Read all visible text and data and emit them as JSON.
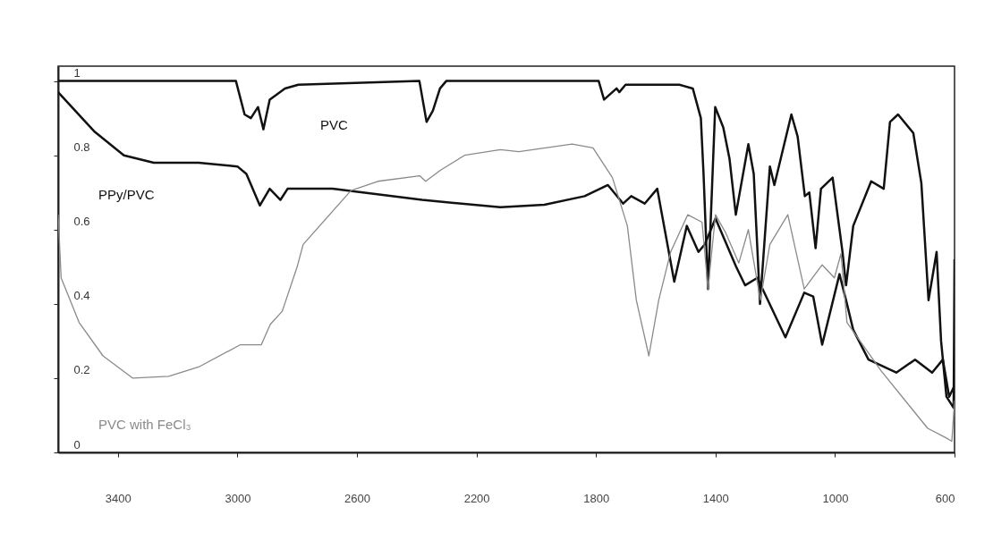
{
  "chart_data": {
    "type": "line",
    "xlim": [
      3600,
      600
    ],
    "ylim": [
      0,
      1.04
    ],
    "xticks": [
      3400,
      3000,
      2600,
      2200,
      1800,
      1400,
      1000,
      600
    ],
    "yticks": [
      0,
      0.2,
      0.4,
      0.6,
      0.8,
      1
    ],
    "grid": false,
    "series": [
      {
        "name": "PVC",
        "color": "#111111",
        "x": [
          3600,
          3005,
          2976,
          2955,
          2931,
          2913,
          2892,
          2841,
          2796,
          2391,
          2367,
          2346,
          2322,
          2301,
          1791,
          1773,
          1731,
          1722,
          1701,
          1521,
          1476,
          1449,
          1440,
          1425,
          1401,
          1374,
          1353,
          1332,
          1290,
          1272,
          1251,
          1218,
          1203,
          1179,
          1146,
          1125,
          1101,
          1086,
          1065,
          1047,
          1008,
          975,
          963,
          939,
          879,
          837,
          816,
          789,
          738,
          711,
          687,
          660,
          645,
          627,
          603,
          600
        ],
        "values": [
          1.0,
          1.0,
          0.91,
          0.9,
          0.93,
          0.87,
          0.95,
          0.98,
          0.99,
          1.0,
          0.89,
          0.92,
          0.98,
          1.0,
          1.0,
          0.95,
          0.98,
          0.97,
          0.99,
          0.99,
          0.98,
          0.9,
          0.75,
          0.44,
          0.93,
          0.875,
          0.79,
          0.64,
          0.83,
          0.75,
          0.4,
          0.77,
          0.72,
          0.8,
          0.91,
          0.85,
          0.69,
          0.7,
          0.55,
          0.71,
          0.74,
          0.54,
          0.45,
          0.61,
          0.73,
          0.71,
          0.89,
          0.91,
          0.86,
          0.725,
          0.41,
          0.54,
          0.3,
          0.15,
          0.12,
          0.52
        ]
      },
      {
        "name": "PPy/PVC",
        "color": "#111111",
        "x": [
          3600,
          3480,
          3380,
          3280,
          3130,
          3000,
          2970,
          2925,
          2892,
          2856,
          2832,
          2682,
          2382,
          2120,
          1973,
          1838,
          1760,
          1709,
          1682,
          1637,
          1595,
          1538,
          1496,
          1457,
          1436,
          1400,
          1331,
          1301,
          1260,
          1166,
          1103,
          1073,
          1043,
          985,
          960,
          939,
          888,
          795,
          732,
          675,
          639,
          618,
          600
        ],
        "values": [
          0.97,
          0.865,
          0.8,
          0.78,
          0.78,
          0.77,
          0.75,
          0.665,
          0.71,
          0.68,
          0.71,
          0.71,
          0.68,
          0.66,
          0.667,
          0.69,
          0.72,
          0.67,
          0.69,
          0.67,
          0.71,
          0.46,
          0.61,
          0.54,
          0.56,
          0.63,
          0.5,
          0.45,
          0.47,
          0.31,
          0.43,
          0.42,
          0.29,
          0.48,
          0.4,
          0.33,
          0.25,
          0.215,
          0.25,
          0.215,
          0.25,
          0.15,
          0.18
        ]
      },
      {
        "name": "PVC with FeCl₃",
        "color": "#8a8a8a",
        "x": [
          3600,
          3590,
          3530,
          3450,
          3350,
          3230,
          3130,
          2990,
          2920,
          2890,
          2850,
          2800,
          2780,
          2620,
          2530,
          2390,
          2370,
          2320,
          2240,
          2120,
          2058,
          1880,
          1810,
          1745,
          1695,
          1665,
          1623,
          1590,
          1550,
          1493,
          1445,
          1425,
          1400,
          1365,
          1322,
          1290,
          1250,
          1218,
          1158,
          1103,
          1043,
          1002,
          980,
          960,
          846,
          690,
          630,
          609,
          600
        ],
        "values": [
          0.64,
          0.47,
          0.35,
          0.26,
          0.2,
          0.205,
          0.23,
          0.29,
          0.29,
          0.345,
          0.38,
          0.5,
          0.56,
          0.705,
          0.73,
          0.745,
          0.73,
          0.76,
          0.8,
          0.815,
          0.81,
          0.83,
          0.82,
          0.74,
          0.61,
          0.41,
          0.26,
          0.41,
          0.54,
          0.64,
          0.62,
          0.44,
          0.64,
          0.59,
          0.51,
          0.6,
          0.41,
          0.56,
          0.64,
          0.44,
          0.505,
          0.47,
          0.535,
          0.35,
          0.22,
          0.065,
          0.04,
          0.03,
          0.14
        ]
      }
    ]
  }
}
